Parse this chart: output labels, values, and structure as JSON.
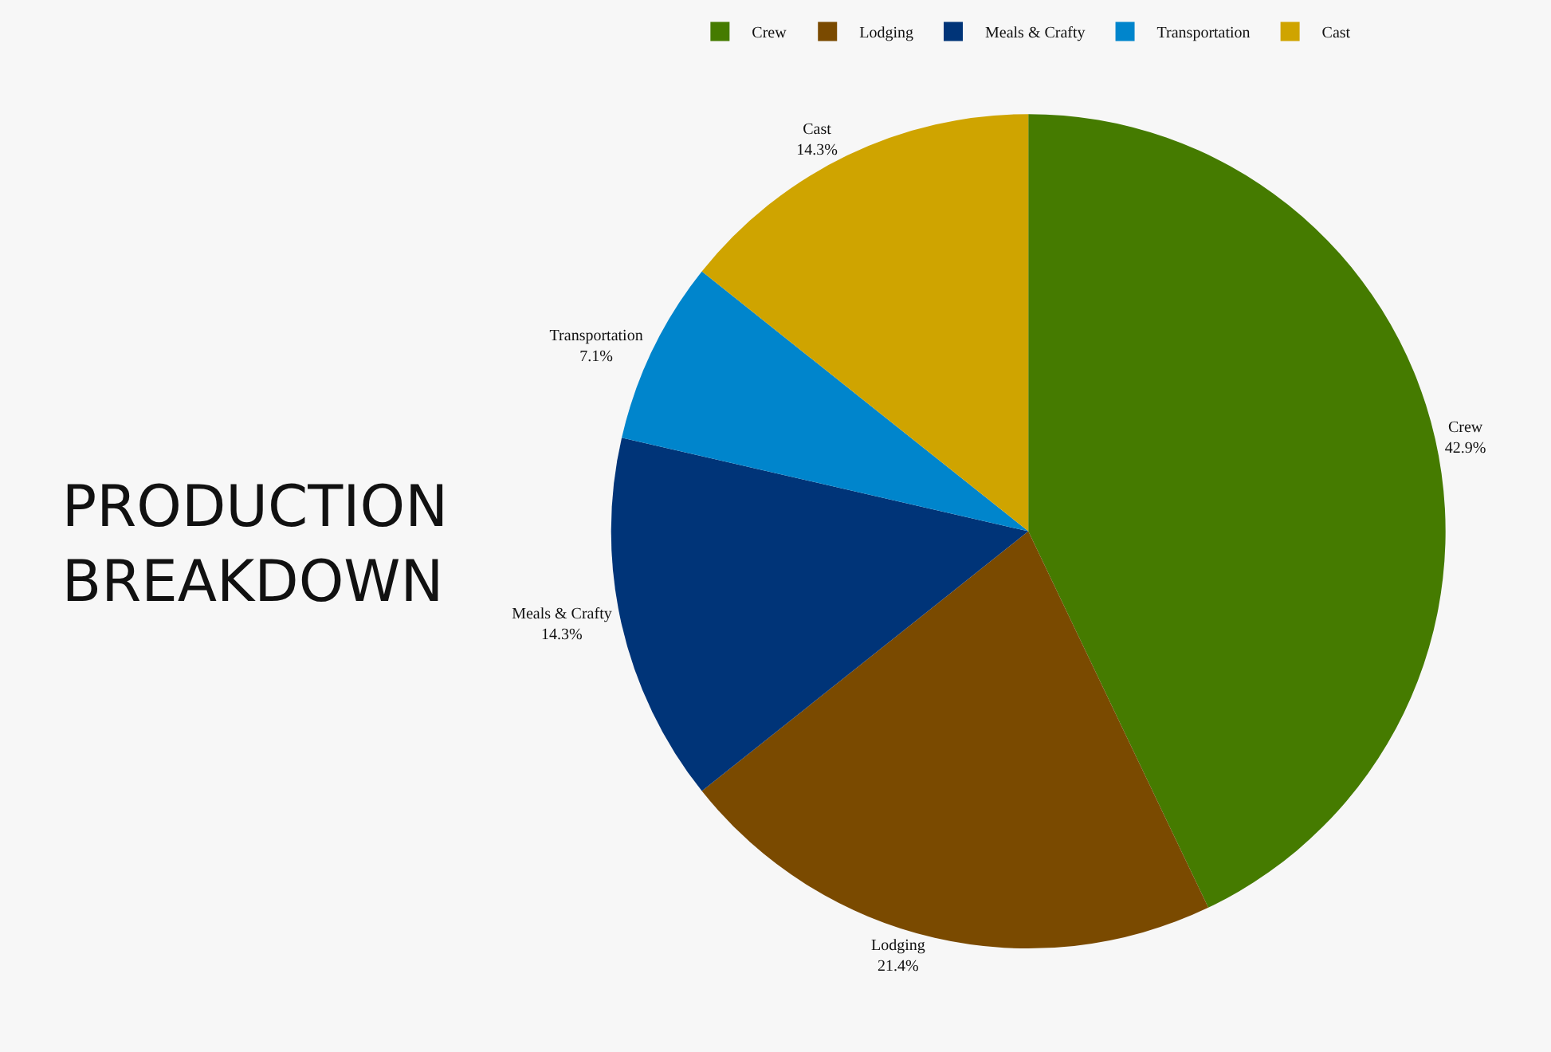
{
  "chart_data": {
    "type": "pie",
    "title": "PRODUCTION\nBREAKDOWN",
    "categories": [
      "Crew",
      "Lodging",
      "Meals & Crafty",
      "Transportation",
      "Cast"
    ],
    "values": [
      42.9,
      21.4,
      14.3,
      7.1,
      14.3
    ],
    "value_labels": [
      "42.9%",
      "21.4%",
      "14.3%",
      "7.1%",
      "14.3%"
    ],
    "colors": [
      "#457b00",
      "#7a4a00",
      "#003478",
      "#0085cc",
      "#cfa400"
    ],
    "legend": "top"
  }
}
